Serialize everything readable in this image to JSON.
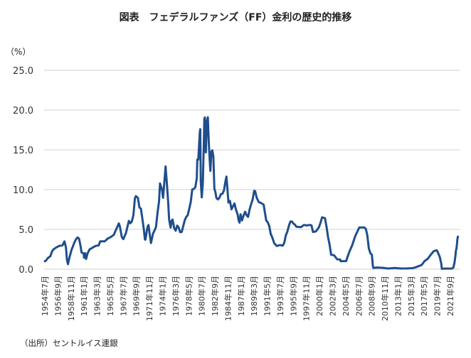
{
  "chart_data": {
    "type": "line",
    "title": "図表　フェデラルファンズ（FF）金利の歴史的推移",
    "ylabel": "（%）",
    "source": "（出所）セントルイス連銀",
    "ylim": [
      0,
      25
    ],
    "yticks": [
      "0.0",
      "5.0",
      "10.0",
      "15.0",
      "20.0",
      "25.0"
    ],
    "grid": "horizontal",
    "line_color": "#1f4e8c",
    "xtick_labels": [
      "1954年7月",
      "1956年9月",
      "1958年11月",
      "1961年1月",
      "1963年3月",
      "1965年5月",
      "1967年7月",
      "1969年9月",
      "1971年11月",
      "1974年1月",
      "1976年3月",
      "1978年5月",
      "1980年7月",
      "1982年9月",
      "1984年11月",
      "1987年1月",
      "1989年3月",
      "1991年5月",
      "1993年7月",
      "1995年9月",
      "1997年11月",
      "2000年1月",
      "2002年3月",
      "2004年5月",
      "2006年7月",
      "2008年9月",
      "2010年11月",
      "2013年1月",
      "2015年3月",
      "2017年5月",
      "2019年7月",
      "2021年9月"
    ],
    "series": [
      {
        "x": [
          "1954-07",
          "1954-09",
          "1955-01",
          "1955-06",
          "1955-09",
          "1955-12",
          "1956-06",
          "1956-12",
          "1957-06",
          "1957-10",
          "1957-12",
          "1958-01",
          "1958-03",
          "1958-05",
          "1958-08",
          "1958-12",
          "1959-06",
          "1959-09",
          "1959-12",
          "1960-03",
          "1960-06",
          "1960-08",
          "1960-12",
          "1961-01",
          "1961-03",
          "1961-05",
          "1961-08",
          "1961-12",
          "1962-06",
          "1962-12",
          "1963-06",
          "1963-09",
          "1964-06",
          "1964-12",
          "1965-06",
          "1965-12",
          "1966-06",
          "1966-10",
          "1966-12",
          "1967-04",
          "1967-07",
          "1967-12",
          "1968-06",
          "1968-09",
          "1968-12",
          "1969-03",
          "1969-06",
          "1969-08",
          "1969-12",
          "1970-03",
          "1970-06",
          "1970-09",
          "1970-12",
          "1971-02",
          "1971-03",
          "1971-07",
          "1971-09",
          "1971-12",
          "1972-02",
          "1972-06",
          "1972-09",
          "1972-12",
          "1973-03",
          "1973-06",
          "1973-08",
          "1973-09",
          "1973-12",
          "1974-02",
          "1974-05",
          "1974-07",
          "1974-09",
          "1974-12",
          "1975-02",
          "1975-05",
          "1975-07",
          "1975-09",
          "1975-12",
          "1976-03",
          "1976-06",
          "1976-09",
          "1976-12",
          "1977-03",
          "1977-06",
          "1977-09",
          "1977-12",
          "1978-03",
          "1978-06",
          "1978-09",
          "1978-12",
          "1979-03",
          "1979-06",
          "1979-09",
          "1979-10",
          "1979-12",
          "1980-03",
          "1980-04",
          "1980-05",
          "1980-07",
          "1980-09",
          "1980-11",
          "1980-12",
          "1981-01",
          "1981-03",
          "1981-05",
          "1981-07",
          "1981-09",
          "1981-11",
          "1981-12",
          "1982-02",
          "1982-04",
          "1982-06",
          "1982-08",
          "1982-10",
          "1982-12",
          "1983-03",
          "1983-06",
          "1983-09",
          "1983-12",
          "1984-03",
          "1984-06",
          "1984-08",
          "1984-10",
          "1984-12",
          "1985-03",
          "1985-06",
          "1985-09",
          "1985-12",
          "1986-03",
          "1986-06",
          "1986-08",
          "1986-10",
          "1986-12",
          "1987-03",
          "1987-06",
          "1987-09",
          "1987-12",
          "1988-03",
          "1988-06",
          "1988-09",
          "1988-12",
          "1989-03",
          "1989-05",
          "1989-08",
          "1989-12",
          "1990-06",
          "1990-10",
          "1990-12",
          "1991-03",
          "1991-06",
          "1991-09",
          "1991-12",
          "1992-03",
          "1992-07",
          "1992-12",
          "1993-06",
          "1993-12",
          "1994-03",
          "1994-06",
          "1994-09",
          "1994-12",
          "1995-03",
          "1995-06",
          "1995-09",
          "1995-12",
          "1996-03",
          "1996-12",
          "1997-06",
          "1997-12",
          "1998-06",
          "1998-09",
          "1998-12",
          "1999-06",
          "1999-12",
          "2000-03",
          "2000-06",
          "2000-12",
          "2001-01",
          "2001-03",
          "2001-06",
          "2001-09",
          "2001-12",
          "2002-06",
          "2002-12",
          "2003-06",
          "2003-07",
          "2004-06",
          "2004-09",
          "2004-12",
          "2005-06",
          "2005-12",
          "2006-06",
          "2006-08",
          "2007-06",
          "2007-09",
          "2007-12",
          "2008-03",
          "2008-06",
          "2008-09",
          "2008-11",
          "2008-12",
          "2009-06",
          "2010-06",
          "2011-06",
          "2012-06",
          "2013-06",
          "2014-06",
          "2015-06",
          "2015-12",
          "2016-06",
          "2016-12",
          "2017-06",
          "2017-12",
          "2018-06",
          "2018-12",
          "2019-06",
          "2019-08",
          "2019-12",
          "2020-03",
          "2020-04",
          "2020-12",
          "2021-06",
          "2021-12",
          "2022-03",
          "2022-05",
          "2022-06",
          "2022-07",
          "2022-08",
          "2022-09",
          "2022-10",
          "2022-11",
          "2022-12"
        ],
        "y": [
          1.0,
          1.07,
          1.39,
          1.64,
          2.18,
          2.48,
          2.75,
          2.94,
          3.0,
          3.5,
          3.0,
          2.72,
          1.2,
          0.63,
          1.5,
          2.42,
          3.39,
          3.76,
          3.99,
          3.84,
          2.92,
          2.11,
          1.98,
          1.45,
          2.02,
          1.29,
          2.0,
          2.48,
          2.71,
          2.93,
          2.99,
          3.5,
          3.5,
          3.85,
          4.04,
          4.32,
          5.17,
          5.76,
          5.4,
          4.05,
          3.79,
          4.51,
          6.07,
          5.78,
          6.02,
          6.79,
          8.9,
          9.19,
          8.97,
          7.76,
          7.6,
          6.29,
          4.9,
          3.72,
          3.71,
          5.31,
          5.55,
          4.14,
          3.29,
          4.46,
          4.87,
          5.33,
          7.09,
          8.49,
          10.78,
          10.55,
          9.95,
          8.97,
          11.31,
          12.92,
          11.34,
          8.53,
          6.24,
          5.22,
          6.1,
          6.24,
          5.2,
          4.84,
          5.48,
          5.25,
          4.65,
          4.69,
          5.39,
          6.14,
          6.56,
          6.79,
          7.6,
          8.45,
          10.03,
          10.09,
          10.29,
          11.43,
          13.77,
          13.78,
          17.19,
          17.61,
          10.98,
          9.03,
          10.87,
          15.85,
          18.9,
          19.08,
          14.7,
          18.52,
          19.1,
          15.87,
          13.31,
          12.37,
          14.78,
          14.94,
          14.15,
          10.12,
          9.71,
          8.95,
          8.77,
          8.98,
          9.45,
          9.47,
          9.91,
          11.06,
          11.64,
          9.99,
          8.38,
          8.58,
          7.53,
          7.92,
          8.27,
          7.48,
          6.92,
          6.17,
          5.85,
          6.91,
          6.13,
          6.73,
          7.22,
          6.77,
          6.58,
          7.5,
          8.19,
          8.76,
          9.85,
          9.81,
          9.02,
          8.45,
          8.29,
          8.11,
          7.31,
          6.12,
          5.9,
          5.45,
          4.43,
          3.98,
          3.25,
          2.92,
          3.04,
          2.96,
          3.34,
          4.25,
          4.73,
          5.45,
          5.98,
          6.0,
          5.74,
          5.6,
          5.34,
          5.29,
          5.56,
          5.5,
          5.56,
          5.51,
          4.68,
          4.76,
          5.3,
          5.85,
          6.53,
          6.4,
          5.98,
          5.31,
          3.97,
          3.07,
          1.82,
          1.75,
          1.24,
          1.22,
          1.01,
          1.03,
          1.61,
          2.16,
          3.04,
          4.16,
          4.99,
          5.25,
          5.25,
          5.07,
          4.24,
          2.61,
          2.0,
          1.81,
          0.39,
          0.16,
          0.21,
          0.18,
          0.09,
          0.16,
          0.09,
          0.1,
          0.13,
          0.24,
          0.38,
          0.54,
          1.04,
          1.3,
          1.82,
          2.27,
          2.38,
          2.13,
          1.55,
          0.65,
          0.05,
          0.09,
          0.08,
          0.08,
          0.2,
          0.77,
          1.21,
          1.68,
          2.33,
          2.56,
          3.08,
          3.78,
          4.1
        ]
      }
    ]
  }
}
